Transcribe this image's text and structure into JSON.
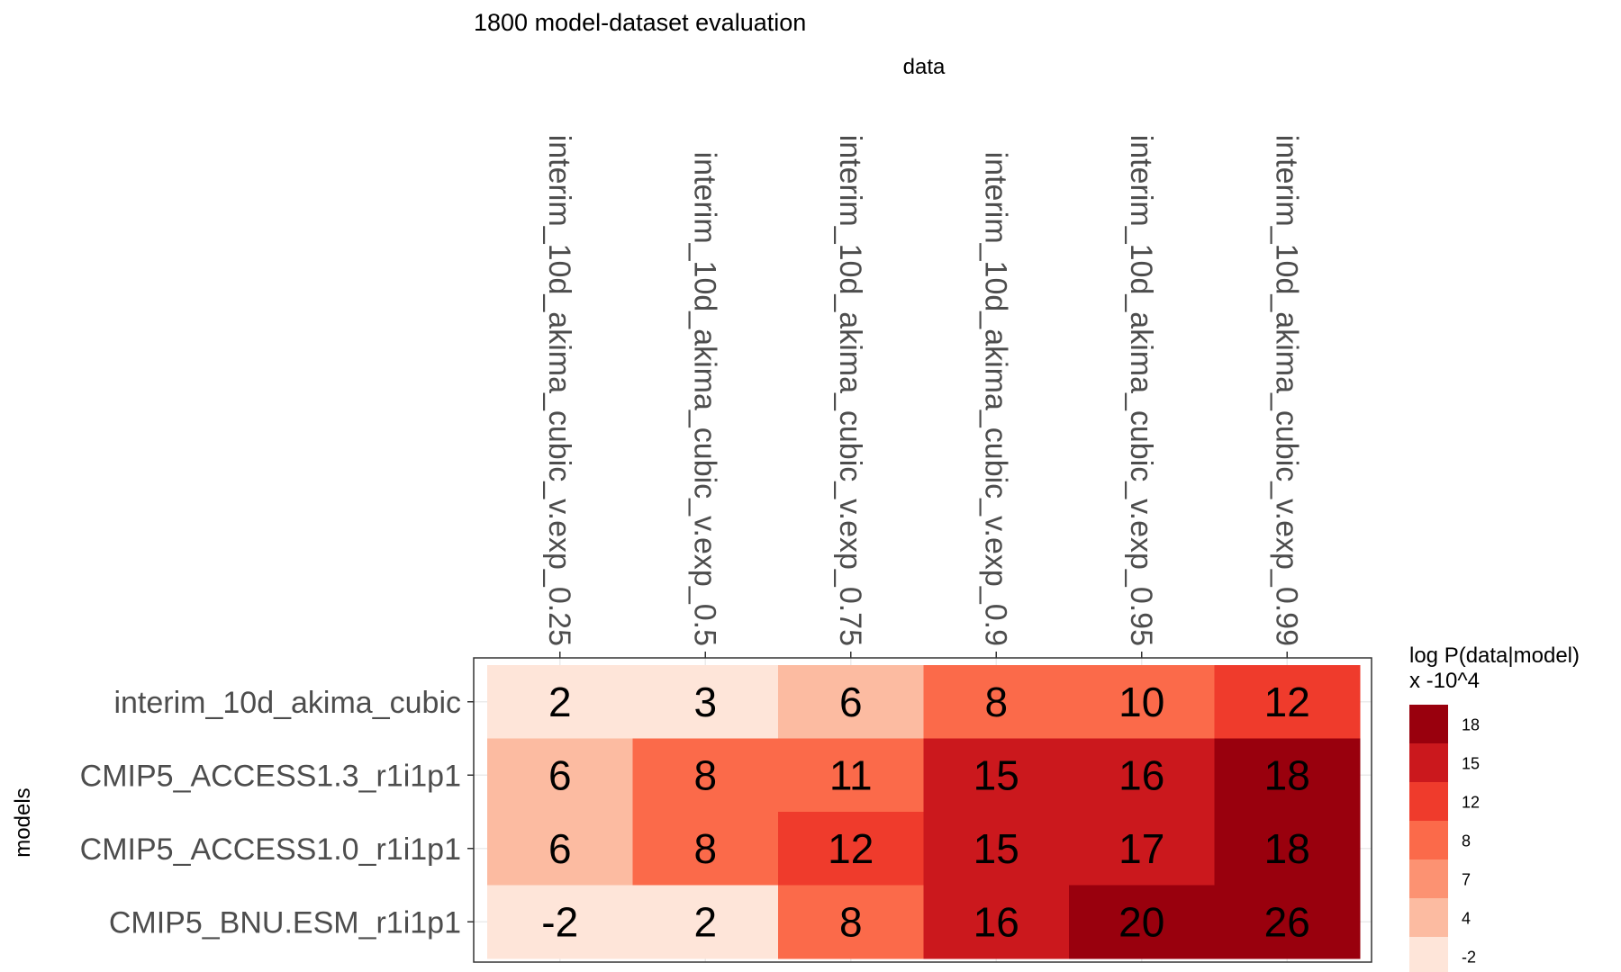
{
  "chart_data": {
    "type": "heatmap",
    "title": "1800 model-dataset evaluation",
    "xlabel": "data",
    "ylabel": "models",
    "x": [
      "interim_10d_akima_cubic_v.exp_0.25",
      "interim_10d_akima_cubic_v.exp_0.5",
      "interim_10d_akima_cubic_v.exp_0.75",
      "interim_10d_akima_cubic_v.exp_0.9",
      "interim_10d_akima_cubic_v.exp_0.95",
      "interim_10d_akima_cubic_v.exp_0.99"
    ],
    "y": [
      "interim_10d_akima_cubic",
      "CMIP5_ACCESS1.3_r1i1p1",
      "CMIP5_ACCESS1.0_r1i1p1",
      "CMIP5_BNU.ESM_r1i1p1"
    ],
    "values": [
      [
        2,
        3,
        6,
        8,
        10,
        12
      ],
      [
        6,
        8,
        11,
        15,
        16,
        18
      ],
      [
        6,
        8,
        12,
        15,
        17,
        18
      ],
      [
        -2,
        2,
        8,
        16,
        20,
        26
      ]
    ],
    "legend": {
      "title_line1": "log P(data|model)",
      "title_line2": "x -10^4",
      "placement": "right",
      "breaks": [
        "18",
        "15",
        "12",
        "8",
        "7",
        "4",
        "-2"
      ],
      "colors": [
        "#99000d",
        "#cb181d",
        "#ef3b2c",
        "#fb6a4a",
        "#fc9272",
        "#fcbba1",
        "#fee5d9"
      ],
      "thresholds": [
        -2,
        4,
        7,
        8,
        12,
        15,
        18
      ]
    },
    "grid": true
  }
}
